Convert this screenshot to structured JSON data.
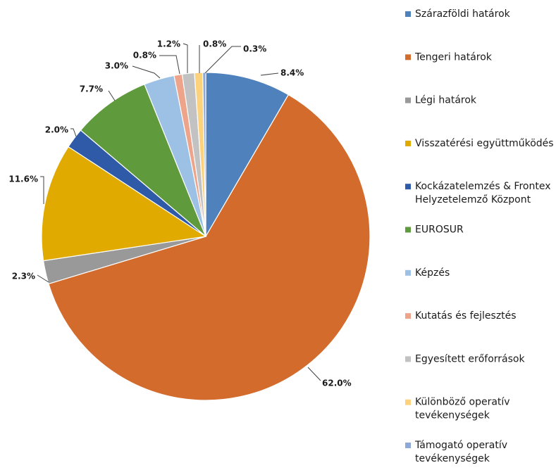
{
  "chart_data": {
    "type": "pie",
    "title": "",
    "series": [
      {
        "name": "Szárazföldi határok",
        "value": 8.4,
        "label": "8.4%",
        "color": "#4f81bd"
      },
      {
        "name": "Tengeri határok",
        "value": 62.0,
        "label": "62.0%",
        "color": "#d26b2c"
      },
      {
        "name": "Légi határok",
        "value": 2.3,
        "label": "2.3%",
        "color": "#999999"
      },
      {
        "name": "Visszatérési együttműködés",
        "value": 11.6,
        "label": "11.6%",
        "color": "#e0aa00"
      },
      {
        "name": "Kockázatelemzés & Frontex Helyzetelemző Központ",
        "legend_lines": [
          "Kockázatelemzés & Frontex",
          "Helyzetelemző Központ"
        ],
        "value": 2.0,
        "label": "2.0%",
        "color": "#2f5aa8"
      },
      {
        "name": "EUROSUR",
        "value": 7.7,
        "label": "7.7%",
        "color": "#5f9a3c"
      },
      {
        "name": "Képzés",
        "value": 3.0,
        "label": "3.0%",
        "color": "#9dc0e5"
      },
      {
        "name": "Kutatás és fejlesztés",
        "value": 0.8,
        "label": "0.8%",
        "color": "#eea48b"
      },
      {
        "name": "Egyesített erőforrások",
        "value": 1.2,
        "label": "1.2%",
        "color": "#c2c2c2"
      },
      {
        "name": "Különböző operatív tevékenységek",
        "legend_lines": [
          "Különböző operatív",
          "tevékenységek"
        ],
        "value": 0.8,
        "label": "0.8%",
        "color": "#fdd27c"
      },
      {
        "name": "Támogató operatív tevékenységek",
        "legend_lines": [
          "Támogató operatív",
          "tevékenységek"
        ],
        "value": 0.3,
        "label": "0.3%",
        "color": "#8ea9d8"
      }
    ],
    "legend_position": "right",
    "start_angle_deg": 0,
    "direction": "clockwise"
  }
}
